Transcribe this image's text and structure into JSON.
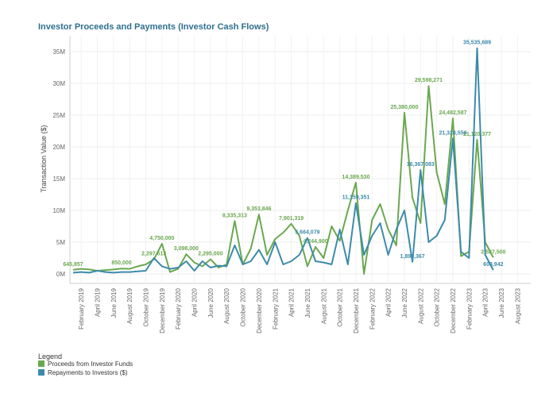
{
  "chart_data": {
    "type": "line",
    "title": "Investor Proceeds and Payments (Investor Cash Flows)",
    "y_label": "Transaction Value ($)",
    "legend_title": "Legend",
    "categories": [
      null,
      "February 2019",
      null,
      "April 2019",
      null,
      "June 2019",
      null,
      "August 2019",
      null,
      "October 2019",
      null,
      "December 2019",
      null,
      "February 2020",
      null,
      "April 2020",
      null,
      "June 2020",
      null,
      "August 2020",
      null,
      "October 2020",
      null,
      "December 2020",
      null,
      "February 2021",
      null,
      "April 2021",
      null,
      "June 2021",
      null,
      "August 2021",
      null,
      "October 2021",
      null,
      "December 2021",
      null,
      "February 2022",
      null,
      "April 2022",
      null,
      "June 2022",
      null,
      "August 2022",
      null,
      "October 2022",
      null,
      "December 2022",
      null,
      "February 2023",
      null,
      "April 2023",
      null,
      "June 2023",
      null,
      "August 2023"
    ],
    "series": [
      {
        "name": "Proceeds from Investor Funds",
        "color": "#6aa84f",
        "values": [
          645857,
          800000,
          700000,
          500000,
          600000,
          700000,
          850000,
          800000,
          1200000,
          1500000,
          2297613,
          4750000,
          300000,
          800000,
          3098000,
          1800000,
          1200000,
          2295000,
          1000000,
          1500000,
          8335313,
          1500000,
          4000000,
          9353846,
          3000000,
          5500000,
          6500000,
          7901319,
          6000000,
          1200000,
          4244900,
          2500000,
          7500000,
          5200000,
          10000000,
          14389530,
          0,
          8500000,
          11000000,
          7000000,
          4500000,
          25380000,
          12000000,
          8000000,
          29598271,
          16000000,
          11000000,
          24482587,
          2800000,
          3500000,
          21120377,
          5000000,
          2587500,
          null,
          null,
          null
        ],
        "value_labels": [
          "645,857",
          null,
          null,
          null,
          null,
          null,
          "850,000",
          null,
          null,
          null,
          "2,297,613",
          "4,750,000",
          null,
          null,
          "3,098,000",
          null,
          null,
          "2,295,000",
          null,
          null,
          "8,335,313",
          null,
          null,
          "9,353,846",
          null,
          null,
          null,
          "7,901,319",
          null,
          null,
          "4,244,900",
          null,
          null,
          null,
          null,
          "14,389,530",
          "0",
          null,
          null,
          null,
          null,
          "25,380,000",
          null,
          null,
          "29,598,271",
          null,
          null,
          "24,482,587",
          null,
          null,
          "21,120,377",
          null,
          "2,587,500",
          null,
          null,
          null
        ]
      },
      {
        "name": "Repayments to Investors ($)",
        "color": "#3d8bab",
        "values": [
          200000,
          300000,
          200000,
          500000,
          300000,
          200000,
          300000,
          300000,
          400000,
          500000,
          2500000,
          1200000,
          800000,
          1000000,
          2000000,
          500000,
          2000000,
          1000000,
          1300000,
          1200000,
          4500000,
          1500000,
          2000000,
          3800000,
          1500000,
          5000000,
          1500000,
          2000000,
          3000000,
          5664079,
          2000000,
          1800000,
          1500000,
          7000000,
          1500000,
          11159351,
          3000000,
          6000000,
          8000000,
          3000000,
          7000000,
          10000000,
          1898367,
          16367083,
          5000000,
          6000000,
          8500000,
          21324556,
          3500000,
          2500000,
          35535689,
          3000000,
          608942,
          null,
          null,
          null
        ],
        "value_labels": [
          null,
          null,
          null,
          null,
          null,
          null,
          null,
          null,
          null,
          null,
          null,
          null,
          null,
          null,
          null,
          null,
          null,
          null,
          null,
          null,
          null,
          null,
          null,
          null,
          null,
          null,
          null,
          null,
          null,
          "5,664,079",
          null,
          null,
          null,
          null,
          null,
          "11,159,351",
          null,
          null,
          null,
          null,
          null,
          null,
          "1,898,367",
          "16,367,083",
          null,
          null,
          null,
          "21,324,556",
          null,
          null,
          "35,535,689",
          null,
          "608,942",
          null,
          null,
          null
        ]
      }
    ],
    "ylim": [
      -1500000,
      37500000
    ],
    "yticks": [
      {
        "value": 0,
        "label": "0M"
      },
      {
        "value": 5000000,
        "label": "5M"
      },
      {
        "value": 10000000,
        "label": "10M"
      },
      {
        "value": 15000000,
        "label": "15M"
      },
      {
        "value": 20000000,
        "label": "20M"
      },
      {
        "value": 25000000,
        "label": "25M"
      },
      {
        "value": 30000000,
        "label": "30M"
      },
      {
        "value": 35000000,
        "label": "35M"
      }
    ],
    "grid": true
  }
}
